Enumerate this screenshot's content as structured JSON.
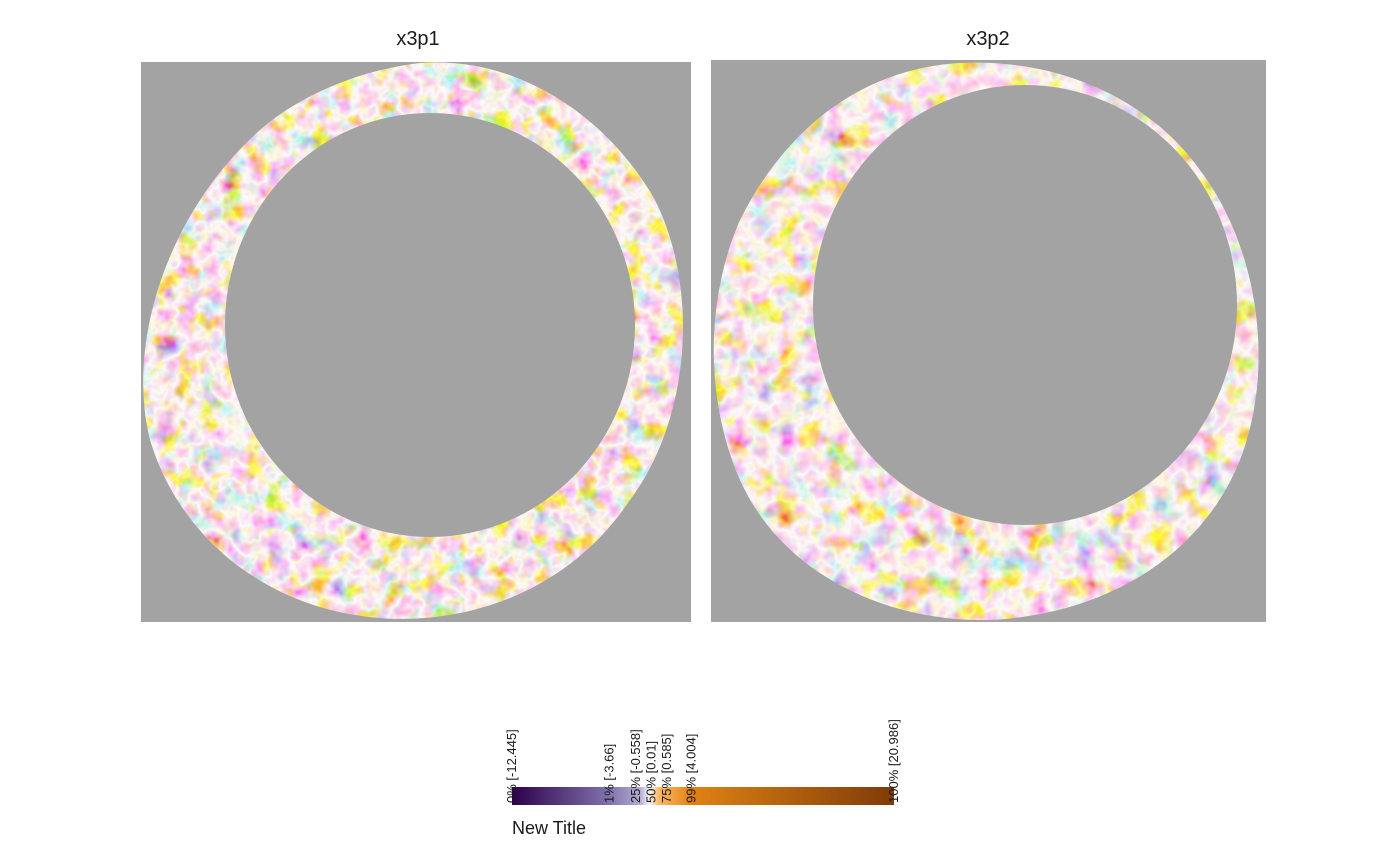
{
  "chart_data": {
    "type": "heatmap",
    "panels": [
      {
        "title": "x3p1"
      },
      {
        "title": "x3p2"
      }
    ],
    "background_color": "#a3a3a3",
    "colormap": {
      "low": "#2d004b",
      "mid": "#f7f7f7",
      "high": "#7f3b08",
      "stops": [
        "#2d004b",
        "#542788",
        "#8073ac",
        "#b2abd2",
        "#f7f7f7",
        "#fdb863",
        "#e08214",
        "#b35806",
        "#7f3b08"
      ]
    },
    "legend": {
      "title": "New Title",
      "placement": "bottom-center",
      "range": [
        -12.445,
        20.986
      ],
      "breaks": [
        {
          "label": "0% [-12.445]",
          "value": -12.445
        },
        {
          "label": "1% [-3.66]",
          "value": -3.66
        },
        {
          "label": "25% [-0.558]",
          "value": -0.558
        },
        {
          "label": "50% [0.01]",
          "value": 0.01
        },
        {
          "label": "75% [0.585]",
          "value": 0.585
        },
        {
          "label": "99% [4.004]",
          "value": 4.004
        },
        {
          "label": "100% [20.986]",
          "value": 20.986
        }
      ]
    }
  }
}
